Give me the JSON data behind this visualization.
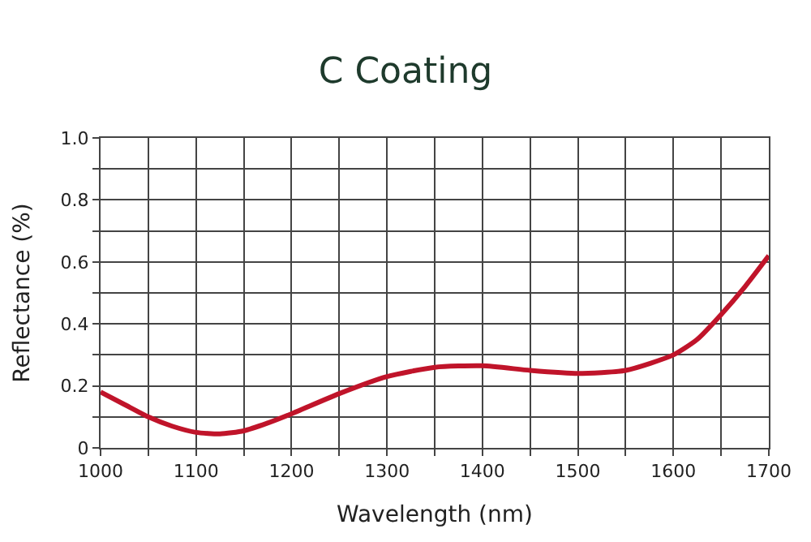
{
  "chart_data": {
    "type": "line",
    "title": "C Coating",
    "xlabel": "Wavelength (nm)",
    "ylabel": "Reflectance (%)",
    "x": [
      1000,
      1025,
      1050,
      1075,
      1100,
      1125,
      1150,
      1175,
      1200,
      1250,
      1300,
      1350,
      1400,
      1450,
      1500,
      1550,
      1600,
      1625,
      1650,
      1675,
      1700
    ],
    "series": [
      {
        "color": "#c0142a",
        "values": [
          0.18,
          0.14,
          0.1,
          0.07,
          0.05,
          0.045,
          0.055,
          0.08,
          0.11,
          0.175,
          0.23,
          0.26,
          0.265,
          0.25,
          0.24,
          0.25,
          0.3,
          0.35,
          0.43,
          0.52,
          0.62
        ]
      }
    ],
    "xlim": [
      1000,
      1700
    ],
    "xticks": [
      1000,
      {
        "value": 1050,
        "label": null
      },
      1100,
      {
        "value": 1150,
        "label": null
      },
      1200,
      {
        "value": 1250,
        "label": null
      },
      1300,
      {
        "value": 1350,
        "label": null
      },
      1400,
      {
        "value": 1450,
        "label": null
      },
      1500,
      {
        "value": 1550,
        "label": null
      },
      1600,
      {
        "value": 1650,
        "label": null
      },
      1700
    ],
    "ylim": [
      0,
      1
    ],
    "yticks": [
      0,
      {
        "value": 0.1,
        "label": null
      },
      0.2,
      {
        "value": 0.3,
        "label": null
      },
      0.4,
      {
        "value": 0.5,
        "label": null
      },
      0.6,
      {
        "value": 0.7,
        "label": null
      },
      0.8,
      {
        "value": 0.9,
        "label": null
      },
      {
        "value": 1,
        "label": "1.0"
      }
    ],
    "grid": true,
    "marker": "none",
    "line_style": "solid"
  }
}
